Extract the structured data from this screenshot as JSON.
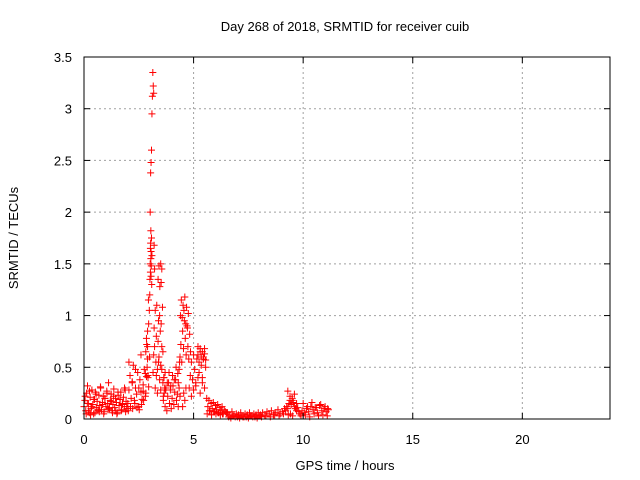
{
  "colors": {
    "series": "#ff0000",
    "axis": "#000000",
    "grid": "#a0a0a0",
    "background": "#ffffff"
  },
  "chart_data": {
    "type": "scatter",
    "title": "Day 268 of 2018, SRMTID for receiver cuib",
    "xlabel": "GPS time / hours",
    "ylabel": "SRMTID / TECUs",
    "xlim": [
      0,
      24
    ],
    "ylim": [
      0,
      3.5
    ],
    "x_ticks": [
      0,
      5,
      10,
      15,
      20
    ],
    "x_tick_labels": [
      "0",
      "5",
      "10",
      "15",
      "20"
    ],
    "y_ticks": [
      0,
      0.5,
      1,
      1.5,
      2,
      2.5,
      3,
      3.5
    ],
    "y_tick_labels": [
      "0",
      "0.5",
      "1",
      "1.5",
      "2",
      "2.5",
      "3",
      "3.5"
    ],
    "grid": true,
    "marker": "plus",
    "series": [
      {
        "name": "SRMTID",
        "x": [
          0.0,
          0.04,
          0.08,
          0.12,
          0.16,
          0.2,
          0.24,
          0.28,
          0.32,
          0.36,
          0.4,
          0.44,
          0.48,
          0.52,
          0.56,
          0.6,
          0.64,
          0.68,
          0.72,
          0.76,
          0.8,
          0.84,
          0.88,
          0.92,
          0.96,
          1.0,
          1.04,
          1.08,
          1.12,
          1.16,
          1.2,
          1.24,
          1.28,
          1.32,
          1.36,
          1.4,
          1.44,
          1.48,
          1.52,
          1.56,
          1.6,
          1.64,
          1.68,
          1.72,
          1.76,
          1.8,
          1.84,
          1.88,
          1.92,
          1.96,
          0.05,
          0.15,
          0.25,
          0.35,
          0.45,
          0.55,
          0.65,
          0.75,
          0.85,
          0.95,
          1.05,
          1.15,
          1.25,
          1.35,
          1.45,
          1.55,
          1.65,
          1.75,
          1.85,
          1.95,
          0.1,
          0.2,
          0.3,
          0.5,
          0.7,
          0.9,
          1.1,
          1.3,
          1.5,
          1.7,
          1.9,
          2.0,
          2.05,
          2.1,
          2.15,
          2.2,
          2.25,
          2.3,
          2.35,
          2.4,
          2.45,
          2.5,
          2.55,
          2.6,
          2.65,
          2.7,
          2.75,
          2.8,
          2.85,
          2.9,
          2.95,
          2.02,
          2.12,
          2.22,
          2.32,
          2.42,
          2.52,
          2.62,
          2.72,
          2.82,
          2.92,
          2.05,
          2.2,
          2.35,
          2.5,
          2.6,
          2.7,
          2.8,
          2.9,
          2.82,
          2.85,
          2.88,
          2.9,
          2.92,
          2.95,
          2.98,
          2.86,
          2.94,
          2.99,
          3.0,
          3.01,
          3.02,
          3.03,
          3.03,
          3.04,
          3.05,
          3.05,
          3.06,
          3.06,
          3.07,
          3.08,
          3.09,
          3.1,
          3.02,
          3.04,
          3.06,
          3.08,
          3.1,
          3.12,
          3.14,
          3.16,
          3.18,
          3.2,
          3.22,
          3.15,
          3.18,
          3.2,
          3.22,
          3.25,
          3.28,
          3.3,
          3.32,
          3.35,
          3.38,
          3.4,
          3.42,
          3.45,
          3.48,
          3.5,
          3.52,
          3.55,
          3.58,
          3.6,
          3.25,
          3.3,
          3.35,
          3.4,
          3.45,
          3.5,
          3.55,
          3.6,
          3.62,
          3.65,
          3.68,
          3.7,
          3.38,
          3.42,
          3.46,
          3.5,
          3.52,
          3.55,
          3.62,
          3.66,
          3.7,
          3.74,
          3.78,
          3.82,
          3.86,
          3.9,
          3.94,
          3.98,
          4.02,
          4.06,
          4.1,
          4.14,
          4.18,
          4.22,
          4.26,
          4.3,
          4.34,
          4.38,
          3.64,
          3.72,
          3.8,
          3.88,
          3.96,
          4.04,
          4.12,
          4.2,
          4.28,
          4.36,
          4.3,
          4.34,
          4.38,
          4.42,
          4.46,
          4.5,
          4.54,
          4.58,
          4.62,
          4.66,
          4.7,
          4.74,
          4.78,
          4.82,
          4.86,
          4.4,
          4.44,
          4.48,
          4.52,
          4.56,
          4.6,
          4.64,
          4.68,
          4.72,
          4.76,
          4.5,
          4.55,
          4.6,
          4.65,
          4.8,
          4.85,
          4.9,
          4.95,
          5.0,
          5.05,
          5.1,
          5.15,
          5.2,
          5.25,
          5.3,
          5.35,
          5.4,
          5.45,
          5.5,
          5.55,
          4.9,
          5.0,
          5.1,
          5.2,
          5.3,
          5.4,
          5.5,
          5.2,
          5.25,
          5.3,
          5.35,
          5.4,
          5.45,
          5.5,
          5.55,
          5.6,
          5.65,
          5.7,
          5.75,
          5.8,
          5.85,
          5.9,
          5.95,
          6.0,
          6.05,
          6.1,
          6.15,
          6.2,
          6.25,
          6.3,
          6.35,
          6.4,
          6.45,
          6.5,
          5.62,
          5.72,
          5.82,
          5.92,
          6.02,
          6.12,
          6.22,
          6.32,
          6.55,
          6.65,
          6.75,
          6.85,
          6.95,
          7.05,
          7.15,
          7.25,
          7.35,
          7.45,
          7.55,
          7.65,
          7.75,
          7.85,
          7.95,
          6.6,
          6.8,
          7.0,
          7.2,
          7.4,
          7.6,
          7.8,
          8.0,
          6.7,
          6.9,
          7.1,
          7.3,
          7.5,
          7.7,
          7.9,
          8.05,
          8.15,
          8.25,
          8.35,
          8.45,
          8.55,
          8.65,
          8.75,
          8.85,
          8.95,
          9.05,
          9.15,
          8.1,
          8.3,
          8.5,
          8.7,
          8.9,
          9.1,
          9.2,
          9.25,
          9.3,
          9.35,
          9.4,
          9.45,
          9.5,
          9.55,
          9.6,
          9.65,
          9.7,
          9.75,
          9.8,
          9.3,
          9.4,
          9.5,
          9.6,
          9.7,
          9.32,
          9.42,
          9.52,
          9.85,
          9.95,
          10.05,
          10.15,
          10.25,
          10.35,
          10.45,
          10.55,
          10.65,
          10.75,
          10.85,
          10.95,
          11.05,
          11.15,
          9.9,
          10.1,
          10.3,
          10.5,
          10.7,
          10.9,
          11.1,
          10.0,
          10.2,
          10.4,
          10.6,
          10.8,
          11.0,
          11.12
        ],
        "y": [
          0.12,
          0.18,
          0.08,
          0.25,
          0.32,
          0.15,
          0.06,
          0.21,
          0.1,
          0.28,
          0.14,
          0.05,
          0.19,
          0.26,
          0.11,
          0.17,
          0.08,
          0.23,
          0.13,
          0.3,
          0.09,
          0.16,
          0.22,
          0.07,
          0.2,
          0.12,
          0.27,
          0.15,
          0.35,
          0.1,
          0.18,
          0.24,
          0.08,
          0.14,
          0.29,
          0.11,
          0.2,
          0.16,
          0.06,
          0.23,
          0.13,
          0.19,
          0.26,
          0.09,
          0.15,
          0.21,
          0.12,
          0.28,
          0.17,
          0.1,
          0.22,
          0.15,
          0.27,
          0.12,
          0.19,
          0.24,
          0.09,
          0.31,
          0.14,
          0.2,
          0.25,
          0.11,
          0.17,
          0.22,
          0.08,
          0.26,
          0.19,
          0.14,
          0.3,
          0.12,
          0.05,
          0.08,
          0.04,
          0.06,
          0.07,
          0.05,
          0.09,
          0.06,
          0.05,
          0.08,
          0.07,
          0.15,
          0.28,
          0.42,
          0.2,
          0.35,
          0.52,
          0.18,
          0.3,
          0.24,
          0.45,
          0.12,
          0.38,
          0.26,
          0.19,
          0.33,
          0.48,
          0.22,
          0.41,
          0.58,
          0.31,
          0.08,
          0.12,
          0.1,
          0.15,
          0.11,
          0.09,
          0.14,
          0.18,
          0.25,
          0.4,
          0.55,
          0.36,
          0.48,
          0.3,
          0.62,
          0.27,
          0.44,
          0.7,
          0.65,
          0.78,
          0.5,
          0.85,
          0.42,
          0.92,
          1.05,
          0.72,
          1.15,
          0.6,
          1.2,
          1.35,
          1.5,
          1.65,
          1.42,
          1.7,
          1.55,
          1.82,
          1.38,
          1.62,
          1.48,
          1.75,
          1.3,
          1.58,
          2.0,
          2.38,
          2.48,
          2.6,
          2.95,
          3.12,
          3.35,
          3.22,
          3.15,
          1.68,
          1.45,
          0.45,
          0.62,
          0.88,
          0.7,
          1.05,
          0.55,
          0.8,
          1.1,
          0.48,
          0.75,
          0.95,
          0.6,
          1.0,
          0.85,
          0.52,
          0.92,
          0.7,
          1.08,
          0.65,
          0.3,
          0.42,
          0.25,
          0.55,
          0.38,
          0.28,
          0.48,
          0.35,
          0.22,
          0.4,
          0.3,
          0.45,
          1.35,
          1.48,
          1.28,
          1.5,
          1.32,
          1.45,
          0.18,
          0.25,
          0.12,
          0.3,
          0.08,
          0.22,
          0.35,
          0.15,
          0.28,
          0.1,
          0.2,
          0.32,
          0.14,
          0.26,
          0.38,
          0.18,
          0.24,
          0.12,
          0.3,
          0.22,
          0.4,
          0.28,
          0.35,
          0.45,
          0.32,
          0.42,
          0.38,
          0.5,
          0.44,
          0.55,
          0.35,
          0.48,
          0.6,
          0.72,
          0.55,
          0.85,
          0.68,
          0.95,
          0.78,
          0.62,
          0.9,
          0.7,
          0.58,
          0.82,
          0.65,
          1.0,
          1.15,
          0.98,
          1.1,
          1.05,
          1.18,
          0.92,
          1.08,
          0.88,
          1.02,
          0.12,
          0.25,
          0.18,
          0.3,
          0.3,
          0.42,
          0.55,
          0.38,
          0.62,
          0.48,
          0.35,
          0.58,
          0.7,
          0.45,
          0.65,
          0.52,
          0.4,
          0.6,
          0.68,
          0.5,
          0.22,
          0.28,
          0.32,
          0.4,
          0.25,
          0.35,
          0.3,
          0.62,
          0.55,
          0.68,
          0.6,
          0.65,
          0.58,
          0.63,
          0.57,
          0.2,
          0.12,
          0.18,
          0.08,
          0.15,
          0.1,
          0.16,
          0.07,
          0.13,
          0.09,
          0.14,
          0.06,
          0.11,
          0.08,
          0.12,
          0.05,
          0.09,
          0.07,
          0.06,
          0.05,
          0.08,
          0.04,
          0.07,
          0.05,
          0.06,
          0.04,
          0.05,
          0.06,
          0.04,
          0.07,
          0.03,
          0.05,
          0.04,
          0.06,
          0.02,
          0.05,
          0.04,
          0.06,
          0.03,
          0.05,
          0.04,
          0.06,
          0.02,
          0.03,
          0.02,
          0.03,
          0.02,
          0.03,
          0.02,
          0.03,
          0.01,
          0.02,
          0.01,
          0.02,
          0.01,
          0.02,
          0.01,
          0.04,
          0.06,
          0.03,
          0.07,
          0.05,
          0.08,
          0.04,
          0.06,
          0.09,
          0.05,
          0.07,
          0.1,
          0.02,
          0.03,
          0.02,
          0.04,
          0.03,
          0.05,
          0.08,
          0.12,
          0.1,
          0.15,
          0.18,
          0.14,
          0.2,
          0.16,
          0.12,
          0.1,
          0.08,
          0.11,
          0.07,
          0.27,
          0.22,
          0.18,
          0.24,
          0.15,
          0.04,
          0.05,
          0.03,
          0.05,
          0.08,
          0.06,
          0.1,
          0.07,
          0.12,
          0.09,
          0.11,
          0.06,
          0.13,
          0.08,
          0.1,
          0.07,
          0.09,
          0.03,
          0.04,
          0.02,
          0.05,
          0.03,
          0.04,
          0.03,
          0.15,
          0.12,
          0.16,
          0.11,
          0.14,
          0.12,
          0.1
        ]
      }
    ]
  }
}
